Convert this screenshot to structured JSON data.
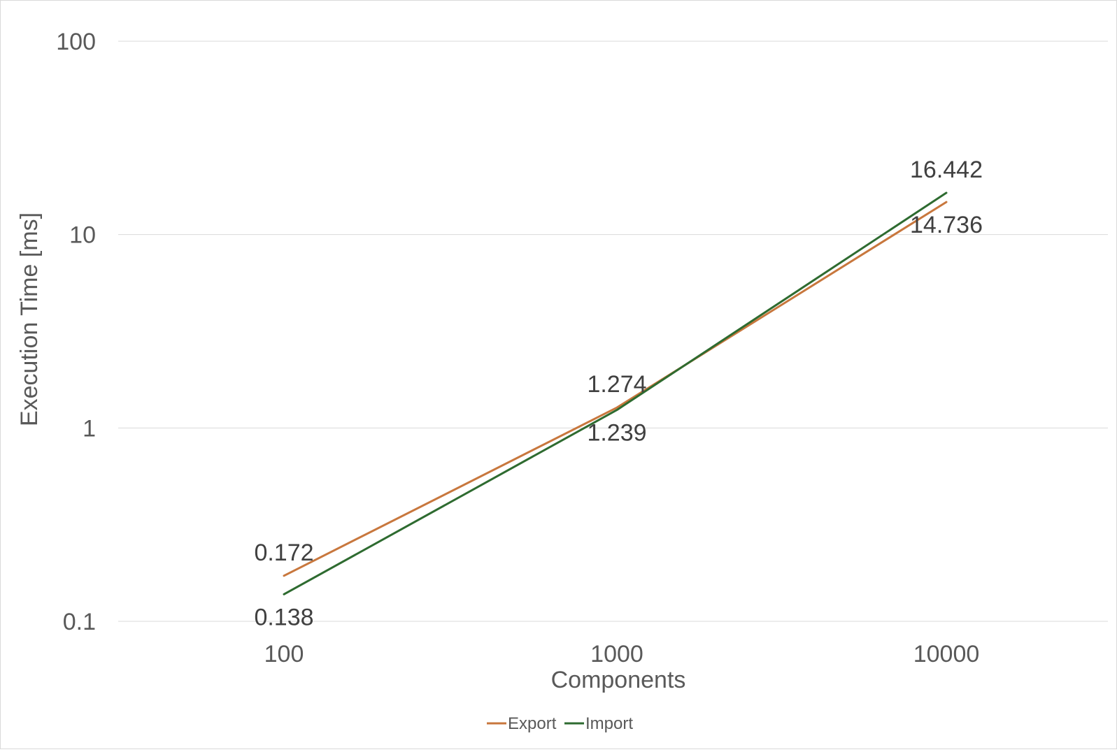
{
  "chart_data": {
    "type": "line",
    "title": "",
    "xlabel": "Components",
    "ylabel": "Execution Time [ms]",
    "x_scale": "log",
    "y_scale": "log",
    "categories": [
      "100",
      "1000",
      "10000"
    ],
    "x": [
      100,
      1000,
      10000
    ],
    "yticks": [
      "0.1",
      "1",
      "10",
      "100"
    ],
    "ylim": [
      0.1,
      100
    ],
    "grid": true,
    "legend_position": "bottom",
    "series": [
      {
        "name": "Export",
        "color": "#C8773D",
        "values": [
          0.172,
          1.274,
          14.736
        ],
        "labels": [
          "0.172",
          "1.274",
          "14.736"
        ]
      },
      {
        "name": "Import",
        "color": "#2E6B30",
        "values": [
          0.138,
          1.239,
          16.442
        ],
        "labels": [
          "0.138",
          "1.239",
          "16.442"
        ]
      }
    ]
  }
}
